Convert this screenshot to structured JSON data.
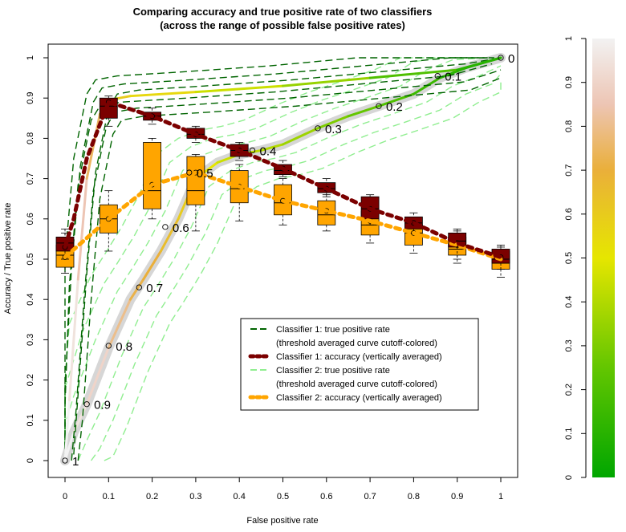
{
  "chart_data": {
    "type": "line",
    "title_line1": "Comparing accuracy and true positive rate of two classifiers",
    "title_line2": "(across the range of possible false positive rates)",
    "xlabel": "False positive rate",
    "ylabel": "Accuracy / True positive rate",
    "xlim": [
      0,
      1
    ],
    "ylim": [
      0,
      1
    ],
    "x_ticks": [
      0,
      0.1,
      0.2,
      0.3,
      0.4,
      0.5,
      0.6,
      0.7,
      0.8,
      0.9,
      1
    ],
    "x_tick_labels": [
      "0",
      "0.1",
      "0.2",
      "0.3",
      "0.4",
      "0.5",
      "0.6",
      "0.7",
      "0.8",
      "0.9",
      "1"
    ],
    "y_ticks": [
      0,
      0.1,
      0.2,
      0.3,
      0.4,
      0.5,
      0.6,
      0.7,
      0.8,
      0.9,
      1
    ],
    "y_tick_labels": [
      "0",
      "0.1",
      "0.2",
      "0.3",
      "0.4",
      "0.5",
      "0.6",
      "0.7",
      "0.8",
      "0.9",
      "1"
    ],
    "legend": {
      "placement": "bottom-right",
      "entries": [
        {
          "label": "Classifier 1: true positive rate",
          "color": "#006400",
          "dash": "long"
        },
        {
          "label": "(threshold averaged curve cutoff-colored)",
          "color": "",
          "dash": "none"
        },
        {
          "label": "Classifier 1: accuracy (vertically averaged)",
          "color": "#7b0000",
          "dash": "dot-thick"
        },
        {
          "label": "Classifier 2: true positive rate",
          "color": "#90ee90",
          "dash": "long"
        },
        {
          "label": "(threshold averaged curve cutoff-colored)",
          "color": "",
          "dash": "none"
        },
        {
          "label": "Classifier 2: accuracy (vertically averaged)",
          "color": "#ffa500",
          "dash": "dot-thick"
        }
      ]
    },
    "colorbar": {
      "ticks": [
        0,
        0.1,
        0.2,
        0.3,
        0.4,
        0.5,
        0.6,
        0.7,
        0.8,
        0.9,
        1
      ],
      "tick_labels": [
        "0",
        "0.1",
        "0.2",
        "0.3",
        "0.4",
        "0.5",
        "0.6",
        "0.7",
        "0.8",
        "0.9",
        "1"
      ],
      "stops": [
        {
          "value": 0,
          "color": "#00a600"
        },
        {
          "value": 0.25,
          "color": "#63c600"
        },
        {
          "value": 0.5,
          "color": "#e6e600"
        },
        {
          "value": 0.7,
          "color": "#eaaf3a"
        },
        {
          "value": 0.85,
          "color": "#edc5b4"
        },
        {
          "value": 1,
          "color": "#f2f2f2"
        }
      ]
    },
    "series": [
      {
        "name": "Classifier 1: true positive rate",
        "x": [
          0,
          0.01,
          0.03,
          0.05,
          0.08,
          0.1,
          0.15,
          0.3,
          0.5,
          0.7,
          0.9,
          1
        ],
        "y": [
          0,
          0.15,
          0.45,
          0.7,
          0.86,
          0.895,
          0.905,
          0.915,
          0.93,
          0.95,
          0.97,
          1
        ],
        "cutoff": [
          1,
          0.95,
          0.85,
          0.75,
          0.65,
          0.6,
          0.55,
          0.45,
          0.35,
          0.2,
          0.1,
          0
        ]
      },
      {
        "name": "Classifier 2: true positive rate",
        "x": [
          0,
          0.02,
          0.05,
          0.1,
          0.15,
          0.18,
          0.22,
          0.26,
          0.3,
          0.35,
          0.4,
          0.45,
          0.5,
          0.58,
          0.65,
          0.72,
          0.8,
          0.86,
          0.92,
          1
        ],
        "y": [
          0,
          0.07,
          0.14,
          0.28,
          0.4,
          0.45,
          0.52,
          0.6,
          0.7,
          0.74,
          0.76,
          0.77,
          0.785,
          0.825,
          0.855,
          0.88,
          0.91,
          0.95,
          0.975,
          1
        ],
        "cutoff": [
          1,
          0.95,
          0.9,
          0.8,
          0.72,
          0.7,
          0.65,
          0.6,
          0.5,
          0.45,
          0.42,
          0.4,
          0.36,
          0.3,
          0.25,
          0.2,
          0.15,
          0.1,
          0.05,
          0
        ]
      },
      {
        "name": "Classifier 1: accuracy (vertically averaged)",
        "x": [
          0,
          0.02,
          0.05,
          0.1,
          0.2,
          0.3,
          0.4,
          0.5,
          0.6,
          0.7,
          0.8,
          0.9,
          1
        ],
        "y": [
          0.53,
          0.6,
          0.75,
          0.89,
          0.855,
          0.81,
          0.77,
          0.725,
          0.675,
          0.625,
          0.59,
          0.54,
          0.505
        ]
      },
      {
        "name": "Classifier 2: accuracy (vertically averaged)",
        "x": [
          0,
          0.1,
          0.2,
          0.3,
          0.4,
          0.5,
          0.6,
          0.7,
          0.8,
          0.9,
          1
        ],
        "y": [
          0.505,
          0.6,
          0.685,
          0.715,
          0.68,
          0.645,
          0.62,
          0.595,
          0.565,
          0.535,
          0.5
        ]
      }
    ],
    "cutoff_points": [
      {
        "label": "1",
        "x": 0,
        "y": 0
      },
      {
        "label": "0.9",
        "x": 0.05,
        "y": 0.14
      },
      {
        "label": "0.8",
        "x": 0.1,
        "y": 0.285
      },
      {
        "label": "0.7",
        "x": 0.17,
        "y": 0.43
      },
      {
        "label": "0.6",
        "x": 0.23,
        "y": 0.58
      },
      {
        "label": "0.5",
        "x": 0.285,
        "y": 0.715
      },
      {
        "label": "0.4",
        "x": 0.43,
        "y": 0.77
      },
      {
        "label": "0.3",
        "x": 0.58,
        "y": 0.825
      },
      {
        "label": "0.2",
        "x": 0.72,
        "y": 0.88
      },
      {
        "label": "0.1",
        "x": 0.855,
        "y": 0.955
      },
      {
        "label": "0",
        "x": 1,
        "y": 1
      }
    ],
    "boxes_classifier1": [
      {
        "x": 0,
        "q1": 0.52,
        "median": 0.54,
        "q3": 0.555,
        "lo": 0.5,
        "hi": 0.575,
        "mean": 0.53
      },
      {
        "x": 0.1,
        "q1": 0.85,
        "median": 0.88,
        "q3": 0.9,
        "lo": 0.83,
        "hi": 0.905,
        "mean": 0.89
      },
      {
        "x": 0.2,
        "q1": 0.845,
        "median": 0.855,
        "q3": 0.865,
        "lo": 0.835,
        "hi": 0.875,
        "mean": 0.855
      },
      {
        "x": 0.3,
        "q1": 0.8,
        "median": 0.81,
        "q3": 0.825,
        "lo": 0.79,
        "hi": 0.83,
        "mean": 0.81
      },
      {
        "x": 0.4,
        "q1": 0.755,
        "median": 0.77,
        "q3": 0.785,
        "lo": 0.745,
        "hi": 0.79,
        "mean": 0.77
      },
      {
        "x": 0.5,
        "q1": 0.71,
        "median": 0.72,
        "q3": 0.735,
        "lo": 0.705,
        "hi": 0.745,
        "mean": 0.725
      },
      {
        "x": 0.6,
        "q1": 0.665,
        "median": 0.675,
        "q3": 0.69,
        "lo": 0.655,
        "hi": 0.7,
        "mean": 0.675
      },
      {
        "x": 0.7,
        "q1": 0.6,
        "median": 0.625,
        "q3": 0.655,
        "lo": 0.585,
        "hi": 0.66,
        "mean": 0.625
      },
      {
        "x": 0.8,
        "q1": 0.575,
        "median": 0.59,
        "q3": 0.605,
        "lo": 0.565,
        "hi": 0.615,
        "mean": 0.59
      },
      {
        "x": 0.9,
        "q1": 0.53,
        "median": 0.545,
        "q3": 0.565,
        "lo": 0.5,
        "hi": 0.575,
        "mean": 0.54
      },
      {
        "x": 1,
        "q1": 0.49,
        "median": 0.5,
        "q3": 0.525,
        "lo": 0.475,
        "hi": 0.53,
        "mean": 0.505
      }
    ],
    "boxes_classifier2": [
      {
        "x": 0,
        "q1": 0.48,
        "median": 0.51,
        "q3": 0.535,
        "lo": 0.465,
        "hi": 0.565,
        "mean": 0.505
      },
      {
        "x": 0.1,
        "q1": 0.565,
        "median": 0.6,
        "q3": 0.635,
        "lo": 0.52,
        "hi": 0.67,
        "mean": 0.6
      },
      {
        "x": 0.2,
        "q1": 0.625,
        "median": 0.67,
        "q3": 0.79,
        "lo": 0.6,
        "hi": 0.8,
        "mean": 0.685
      },
      {
        "x": 0.3,
        "q1": 0.635,
        "median": 0.67,
        "q3": 0.755,
        "lo": 0.57,
        "hi": 0.76,
        "mean": 0.715
      },
      {
        "x": 0.4,
        "q1": 0.64,
        "median": 0.675,
        "q3": 0.72,
        "lo": 0.595,
        "hi": 0.735,
        "mean": 0.68
      },
      {
        "x": 0.5,
        "q1": 0.61,
        "median": 0.64,
        "q3": 0.685,
        "lo": 0.585,
        "hi": 0.7,
        "mean": 0.645
      },
      {
        "x": 0.6,
        "q1": 0.585,
        "median": 0.61,
        "q3": 0.645,
        "lo": 0.57,
        "hi": 0.66,
        "mean": 0.62
      },
      {
        "x": 0.7,
        "q1": 0.56,
        "median": 0.585,
        "q3": 0.62,
        "lo": 0.54,
        "hi": 0.64,
        "mean": 0.595
      },
      {
        "x": 0.8,
        "q1": 0.535,
        "median": 0.565,
        "q3": 0.585,
        "lo": 0.515,
        "hi": 0.6,
        "mean": 0.565
      },
      {
        "x": 0.9,
        "q1": 0.51,
        "median": 0.525,
        "q3": 0.555,
        "lo": 0.49,
        "hi": 0.57,
        "mean": 0.535
      },
      {
        "x": 1,
        "q1": 0.475,
        "median": 0.49,
        "q3": 0.52,
        "lo": 0.455,
        "hi": 0.535,
        "mean": 0.5
      }
    ]
  }
}
